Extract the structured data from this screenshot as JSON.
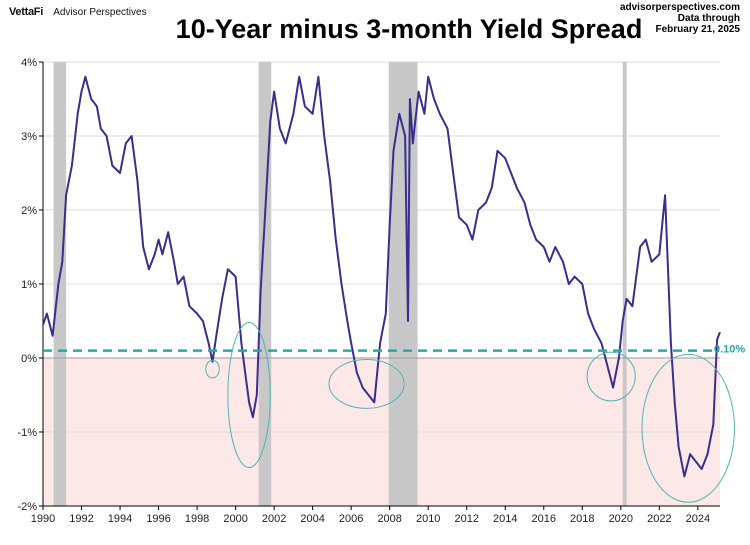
{
  "brand": {
    "logo": "VettaFi",
    "sub": "Advisor Perspectives"
  },
  "source": {
    "site": "advisorperspectives.com",
    "line1": "Data through",
    "line2": "February 21, 2025"
  },
  "chart_data": {
    "type": "line",
    "title": "10-Year minus 3-month Yield Spread",
    "xlim": [
      1990,
      2025.15
    ],
    "ylim": [
      -2,
      4
    ],
    "x_ticks": [
      1990,
      1992,
      1994,
      1996,
      1998,
      2000,
      2002,
      2004,
      2006,
      2008,
      2010,
      2012,
      2014,
      2016,
      2018,
      2020,
      2022,
      2024
    ],
    "y_ticks": [
      {
        "value": 4,
        "label": "4%"
      },
      {
        "value": 3,
        "label": "3%"
      },
      {
        "value": 2,
        "label": "2%"
      },
      {
        "value": 1,
        "label": "1%"
      },
      {
        "value": 0,
        "label": "0%"
      },
      {
        "value": -1,
        "label": "-1%"
      },
      {
        "value": -2,
        "label": "-2%"
      }
    ],
    "grid": true,
    "recessions": [
      [
        1990.55,
        1991.2
      ],
      [
        2001.2,
        2001.85
      ],
      [
        2007.95,
        2009.45
      ],
      [
        2020.1,
        2020.3
      ]
    ],
    "inversion_shading": {
      "from": -2,
      "to": 0,
      "color": "#fde8e8"
    },
    "reference_line": {
      "value": 0.1,
      "label": "0.10%",
      "color": "#2aa7a7"
    },
    "highlight_ellipses": [
      {
        "x_center": 1998.8,
        "y_center": -0.15,
        "x_radius": 0.35,
        "y_radius": 0.12
      },
      {
        "x_center": 2000.7,
        "y_center": -0.5,
        "x_radius": 1.1,
        "y_radius": 0.98
      },
      {
        "x_center": 2006.8,
        "y_center": -0.35,
        "x_radius": 1.95,
        "y_radius": 0.33
      },
      {
        "x_center": 2019.5,
        "y_center": -0.25,
        "x_radius": 1.25,
        "y_radius": 0.33
      },
      {
        "x_center": 2023.5,
        "y_center": -0.95,
        "x_radius": 2.4,
        "y_radius": 1.0
      }
    ],
    "series": [
      {
        "color": "#3a2e8c",
        "x": [
          1990.0,
          1990.2,
          1990.5,
          1990.8,
          1991.0,
          1991.2,
          1991.5,
          1991.8,
          1992.0,
          1992.2,
          1992.5,
          1992.8,
          1993.0,
          1993.3,
          1993.6,
          1994.0,
          1994.3,
          1994.6,
          1994.9,
          1995.2,
          1995.5,
          1995.8,
          1996.0,
          1996.2,
          1996.5,
          1996.8,
          1997.0,
          1997.3,
          1997.6,
          1998.0,
          1998.3,
          1998.6,
          1998.8,
          1999.0,
          1999.3,
          1999.6,
          2000.0,
          2000.3,
          2000.5,
          2000.7,
          2000.9,
          2001.1,
          2001.3,
          2001.5,
          2001.8,
          2002.0,
          2002.3,
          2002.6,
          2003.0,
          2003.3,
          2003.6,
          2004.0,
          2004.3,
          2004.6,
          2004.9,
          2005.2,
          2005.5,
          2005.8,
          2006.0,
          2006.3,
          2006.6,
          2006.9,
          2007.2,
          2007.5,
          2007.8,
          2008.0,
          2008.2,
          2008.5,
          2008.8,
          2008.95,
          2009.05,
          2009.2,
          2009.5,
          2009.8,
          2010.0,
          2010.3,
          2010.6,
          2011.0,
          2011.3,
          2011.6,
          2012.0,
          2012.3,
          2012.6,
          2013.0,
          2013.3,
          2013.6,
          2014.0,
          2014.3,
          2014.6,
          2015.0,
          2015.3,
          2015.6,
          2016.0,
          2016.3,
          2016.6,
          2017.0,
          2017.3,
          2017.6,
          2018.0,
          2018.3,
          2018.6,
          2019.0,
          2019.3,
          2019.6,
          2019.9,
          2020.1,
          2020.3,
          2020.6,
          2021.0,
          2021.3,
          2021.6,
          2022.0,
          2022.3,
          2022.6,
          2022.8,
          2023.0,
          2023.3,
          2023.6,
          2023.9,
          2024.2,
          2024.5,
          2024.8,
          2025.0,
          2025.15
        ],
        "values": [
          0.45,
          0.6,
          0.3,
          1.0,
          1.3,
          2.2,
          2.6,
          3.3,
          3.6,
          3.8,
          3.5,
          3.4,
          3.1,
          3.0,
          2.6,
          2.5,
          2.9,
          3.0,
          2.4,
          1.5,
          1.2,
          1.4,
          1.6,
          1.4,
          1.7,
          1.3,
          1.0,
          1.1,
          0.7,
          0.6,
          0.5,
          0.2,
          -0.05,
          0.3,
          0.8,
          1.2,
          1.1,
          0.2,
          -0.2,
          -0.6,
          -0.8,
          -0.5,
          0.9,
          1.8,
          3.2,
          3.6,
          3.1,
          2.9,
          3.3,
          3.8,
          3.4,
          3.3,
          3.8,
          3.0,
          2.4,
          1.6,
          1.0,
          0.5,
          0.2,
          -0.2,
          -0.4,
          -0.5,
          -0.6,
          0.2,
          0.6,
          1.8,
          2.8,
          3.3,
          3.0,
          0.5,
          3.5,
          2.9,
          3.6,
          3.3,
          3.8,
          3.5,
          3.3,
          3.1,
          2.5,
          1.9,
          1.8,
          1.6,
          2.0,
          2.1,
          2.3,
          2.8,
          2.7,
          2.5,
          2.3,
          2.1,
          1.8,
          1.6,
          1.5,
          1.3,
          1.5,
          1.3,
          1.0,
          1.1,
          1.0,
          0.6,
          0.4,
          0.2,
          -0.1,
          -0.4,
          0.0,
          0.5,
          0.8,
          0.7,
          1.5,
          1.6,
          1.3,
          1.4,
          2.2,
          0.2,
          -0.6,
          -1.2,
          -1.6,
          -1.3,
          -1.4,
          -1.5,
          -1.3,
          -0.9,
          0.25,
          0.35
        ]
      }
    ]
  }
}
